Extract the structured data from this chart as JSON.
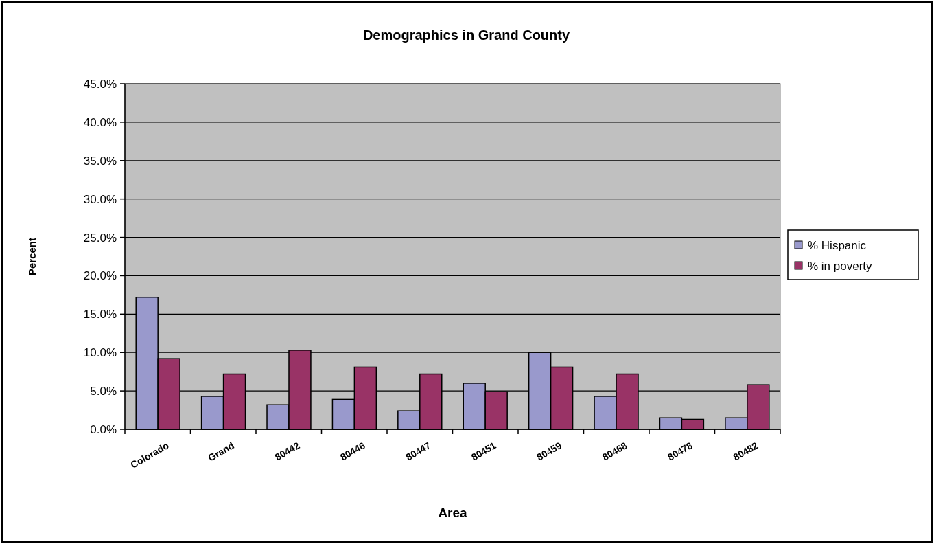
{
  "chart_data": {
    "type": "bar",
    "title": "Demographics in Grand County",
    "xlabel": "Area",
    "ylabel": "Percent",
    "categories": [
      "Colorado",
      "Grand",
      "80442",
      "80446",
      "80447",
      "80451",
      "80459",
      "80468",
      "80478",
      "80482"
    ],
    "series": [
      {
        "name": "% Hispanic",
        "color": "#9999cc",
        "values": [
          17.2,
          4.3,
          3.2,
          3.9,
          2.4,
          6.0,
          10.0,
          4.3,
          1.5,
          1.5
        ]
      },
      {
        "name": "% in poverty",
        "color": "#993366",
        "values": [
          9.2,
          7.2,
          10.3,
          8.1,
          7.2,
          4.9,
          8.1,
          7.2,
          1.3,
          5.8
        ]
      }
    ],
    "ylim": [
      0,
      45
    ],
    "yticks": [
      {
        "value": 0,
        "label": "0.0%"
      },
      {
        "value": 5,
        "label": "5.0%"
      },
      {
        "value": 10,
        "label": "10.0%"
      },
      {
        "value": 15,
        "label": "15.0%"
      },
      {
        "value": 20,
        "label": "20.0%"
      },
      {
        "value": 25,
        "label": "25.0%"
      },
      {
        "value": 30,
        "label": "30.0%"
      },
      {
        "value": 35,
        "label": "35.0%"
      },
      {
        "value": 40,
        "label": "40.0%"
      },
      {
        "value": 45,
        "label": "45.0%"
      }
    ],
    "grid": "y",
    "legend": "right"
  }
}
